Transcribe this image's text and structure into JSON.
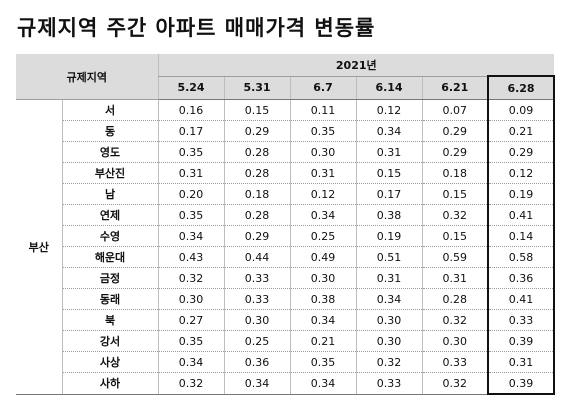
{
  "title": "규제지역 주간 아파트 매매가격 변동률",
  "table": {
    "corner_label": "규제지역",
    "year_label": "2021년",
    "dates": [
      "5.24",
      "5.31",
      "6.7",
      "6.14",
      "6.21",
      "6.28"
    ],
    "region": "부산",
    "rows": [
      {
        "district": "서",
        "values": [
          "0.16",
          "0.15",
          "0.11",
          "0.12",
          "0.07",
          "0.09"
        ]
      },
      {
        "district": "동",
        "values": [
          "0.17",
          "0.29",
          "0.35",
          "0.34",
          "0.29",
          "0.21"
        ]
      },
      {
        "district": "영도",
        "values": [
          "0.35",
          "0.28",
          "0.30",
          "0.31",
          "0.29",
          "0.29"
        ]
      },
      {
        "district": "부산진",
        "values": [
          "0.31",
          "0.28",
          "0.31",
          "0.15",
          "0.18",
          "0.12"
        ]
      },
      {
        "district": "남",
        "values": [
          "0.20",
          "0.18",
          "0.12",
          "0.17",
          "0.15",
          "0.19"
        ]
      },
      {
        "district": "연제",
        "values": [
          "0.35",
          "0.28",
          "0.34",
          "0.38",
          "0.32",
          "0.41"
        ]
      },
      {
        "district": "수영",
        "values": [
          "0.34",
          "0.29",
          "0.25",
          "0.19",
          "0.15",
          "0.14"
        ]
      },
      {
        "district": "해운대",
        "values": [
          "0.43",
          "0.44",
          "0.49",
          "0.51",
          "0.59",
          "0.58"
        ]
      },
      {
        "district": "금정",
        "values": [
          "0.32",
          "0.33",
          "0.30",
          "0.31",
          "0.31",
          "0.36"
        ]
      },
      {
        "district": "동래",
        "values": [
          "0.30",
          "0.33",
          "0.38",
          "0.34",
          "0.28",
          "0.41"
        ]
      },
      {
        "district": "북",
        "values": [
          "0.27",
          "0.30",
          "0.34",
          "0.30",
          "0.32",
          "0.33"
        ]
      },
      {
        "district": "강서",
        "values": [
          "0.35",
          "0.25",
          "0.21",
          "0.30",
          "0.30",
          "0.39"
        ]
      },
      {
        "district": "사상",
        "values": [
          "0.34",
          "0.36",
          "0.35",
          "0.32",
          "0.33",
          "0.31"
        ]
      },
      {
        "district": "사하",
        "values": [
          "0.32",
          "0.34",
          "0.34",
          "0.33",
          "0.32",
          "0.39"
        ]
      }
    ]
  }
}
